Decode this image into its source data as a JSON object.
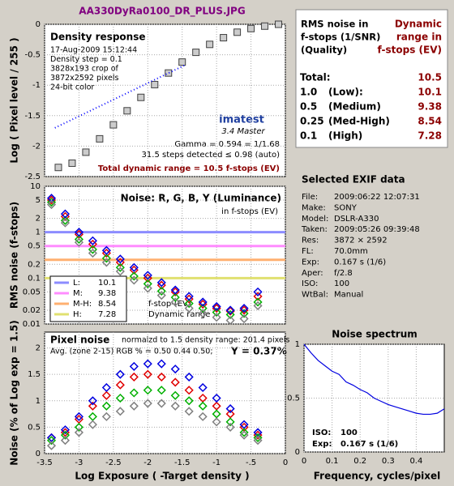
{
  "title": "AA330DyRa0100_DR_PLUS.JPG",
  "chart_data": [
    {
      "type": "scatter",
      "title": "Density response",
      "y_label": "Log ( Pixel level / 255 )",
      "notes": [
        "17-Aug-2009 15:12:44",
        "Density step = 0.1",
        "3828x193 crop of",
        "3872x2592 pixels",
        "24-bit color"
      ],
      "logo": "imatest",
      "version": "3.4  Master",
      "gamma": "Gamma = 0.594 = 1/1.68",
      "steps": "31.5 steps detected ≤ 0.98 (auto)",
      "dynamic_range": "Total dynamic range = 10.5 f-stops (EV)",
      "xlim": [
        -3.5,
        0
      ],
      "ylim": [
        -2.5,
        0
      ],
      "yticks": [
        0,
        -0.5,
        -1,
        -1.5,
        -2,
        -2.5
      ],
      "grid": true,
      "series": [
        {
          "style": "squares",
          "color": "#404040",
          "x": [
            -3.3,
            -3.1,
            -2.9,
            -2.7,
            -2.5,
            -2.3,
            -2.1,
            -1.9,
            -1.7,
            -1.5,
            -1.3,
            -1.1,
            -0.9,
            -0.7,
            -0.5,
            -0.3,
            -0.1
          ],
          "values": [
            -2.35,
            -2.28,
            -2.1,
            -1.88,
            -1.65,
            -1.42,
            -1.2,
            -0.99,
            -0.8,
            -0.62,
            -0.46,
            -0.33,
            -0.22,
            -0.13,
            -0.07,
            -0.03,
            0
          ]
        },
        {
          "style": "dotted",
          "color": "#0000ff",
          "x": [
            -3.35,
            -1.44
          ],
          "values": [
            -1.7,
            -0.66
          ]
        }
      ]
    },
    {
      "type": "scatter",
      "title": "Noise: R, G, B, Y (Luminance)",
      "subtitle": "in f-stops (EV)",
      "y_label": "RMS noise (f-stops)",
      "notes": [
        "f-stop-(EV)",
        "Dynamic range"
      ],
      "xlim": [
        -3.5,
        0
      ],
      "ylim": [
        0.01,
        10
      ],
      "log_y": true,
      "yticks": [
        10,
        5,
        2,
        1,
        0.5,
        0.2,
        0.1,
        0.05,
        0.02,
        0.01
      ],
      "grid": true,
      "thresholds": [
        {
          "label": "L:",
          "level": 1,
          "range": 10.1,
          "color": "#8c8cff"
        },
        {
          "label": "M:",
          "level": 0.5,
          "range": 9.38,
          "color": "#ff8cff"
        },
        {
          "label": "M-H:",
          "level": 0.25,
          "range": 8.54,
          "color": "#ffb070"
        },
        {
          "label": "H:",
          "level": 0.1,
          "range": 7.28,
          "color": "#e0e070"
        }
      ],
      "x": [
        -3.4,
        -3.2,
        -3.0,
        -2.8,
        -2.6,
        -2.4,
        -2.2,
        -2.0,
        -1.8,
        -1.6,
        -1.4,
        -1.2,
        -1.0,
        -0.8,
        -0.6,
        -0.4
      ],
      "series": [
        {
          "color": "#e00000",
          "values": [
            5,
            2.2,
            0.9,
            0.55,
            0.35,
            0.22,
            0.15,
            0.1,
            0.07,
            0.05,
            0.035,
            0.027,
            0.022,
            0.019,
            0.02,
            0.04
          ]
        },
        {
          "color": "#00b000",
          "values": [
            4.5,
            1.8,
            0.7,
            0.42,
            0.27,
            0.17,
            0.11,
            0.075,
            0.052,
            0.038,
            0.028,
            0.022,
            0.018,
            0.016,
            0.017,
            0.03
          ]
        },
        {
          "color": "#0000e0",
          "values": [
            5.5,
            2.5,
            1,
            0.65,
            0.4,
            0.26,
            0.17,
            0.115,
            0.08,
            0.055,
            0.04,
            0.03,
            0.024,
            0.02,
            0.022,
            0.05
          ]
        },
        {
          "color": "#808080",
          "values": [
            4,
            1.6,
            0.6,
            0.35,
            0.22,
            0.14,
            0.09,
            0.06,
            0.042,
            0.03,
            0.022,
            0.017,
            0.014,
            0.012,
            0.013,
            0.025
          ]
        }
      ]
    },
    {
      "type": "scatter",
      "title": "Pixel noise",
      "subtitle": "normalzd to 1.5 density range: 201.4 pixels",
      "average": "Avg. (zone 2-15) RGB % = 0.50  0.44  0.50;",
      "y_average": "Y = 0.37%",
      "x_label": "Log Exposure ( -Target density )",
      "y_label": "Noise (% of Log exp = 1.5)",
      "xlim": [
        -3.5,
        0
      ],
      "ylim": [
        0,
        2.3
      ],
      "yticks": [
        0,
        0.5,
        1,
        1.5,
        2
      ],
      "grid": true,
      "xticks": [
        -3.5,
        -3,
        -2.5,
        -2,
        -1.5,
        -1,
        {
          "value": -0.5,
          "label": "-.5"
        },
        0
      ],
      "x": [
        -3.4,
        -3.2,
        -3.0,
        -2.8,
        -2.6,
        -2.4,
        -2.2,
        -2.0,
        -1.8,
        -1.6,
        -1.4,
        -1.2,
        -1.0,
        -0.8,
        -0.6,
        -0.4
      ],
      "series": [
        {
          "color": "#e00000",
          "values": [
            0.3,
            0.4,
            0.65,
            0.9,
            1.1,
            1.3,
            1.45,
            1.5,
            1.45,
            1.35,
            1.2,
            1.05,
            0.9,
            0.75,
            0.5,
            0.35
          ]
        },
        {
          "color": "#0000e0",
          "values": [
            0.3,
            0.45,
            0.7,
            1.0,
            1.25,
            1.5,
            1.65,
            1.7,
            1.7,
            1.6,
            1.45,
            1.25,
            1.05,
            0.85,
            0.55,
            0.4
          ]
        },
        {
          "color": "#00b000",
          "values": [
            0.25,
            0.35,
            0.5,
            0.7,
            0.9,
            1.05,
            1.15,
            1.2,
            1.2,
            1.1,
            1.0,
            0.9,
            0.75,
            0.6,
            0.4,
            0.3
          ]
        },
        {
          "color": "#808080",
          "values": [
            0.15,
            0.25,
            0.4,
            0.55,
            0.7,
            0.8,
            0.9,
            0.95,
            0.95,
            0.9,
            0.8,
            0.7,
            0.6,
            0.5,
            0.35,
            0.25
          ]
        }
      ]
    },
    {
      "type": "line",
      "title": "Noise spectrum",
      "x_label": "Frequency, cycles/pixel",
      "color": "#0000e0",
      "iso": {
        "label": "ISO:",
        "value": "100"
      },
      "exposure": {
        "label": "Exp:",
        "value": "0.167 s  (1/6)"
      },
      "xlim": [
        0,
        0.5
      ],
      "ylim": [
        0,
        1
      ],
      "xticks": [
        0,
        0.1,
        0.2,
        0.3,
        0.4
      ],
      "yticks": [
        0,
        0.5,
        1
      ],
      "grid": true,
      "x": [
        0,
        0.025,
        0.05,
        0.075,
        0.1,
        0.125,
        0.15,
        0.175,
        0.2,
        0.225,
        0.25,
        0.275,
        0.3,
        0.325,
        0.35,
        0.375,
        0.4,
        0.425,
        0.45,
        0.475,
        0.5
      ],
      "values": [
        1,
        0.92,
        0.85,
        0.8,
        0.75,
        0.72,
        0.65,
        0.62,
        0.58,
        0.55,
        0.5,
        0.47,
        0.44,
        0.42,
        0.4,
        0.38,
        0.36,
        0.35,
        0.35,
        0.36,
        0.4
      ]
    }
  ],
  "summary": {
    "left_header": [
      "RMS noise in",
      "f-stops (1/SNR)",
      "(Quality)"
    ],
    "right_header": [
      "Dynamic",
      "range in",
      "f-stops (EV)"
    ],
    "rows": [
      {
        "label": "Total:",
        "value": 10.5
      },
      {
        "label": "1.0",
        "desc": "(Low):",
        "value": 10.1
      },
      {
        "label": "0.5",
        "desc": "(Medium)",
        "value": 9.38
      },
      {
        "label": "0.25",
        "desc": "(Med-High)",
        "value": 8.54
      },
      {
        "label": "0.1",
        "desc": "(High)",
        "value": 7.28
      }
    ]
  },
  "exif": {
    "title": "Selected EXIF data",
    "rows": [
      {
        "key": "File:",
        "value": "2009:06:22 12:07:31"
      },
      {
        "key": "Make:",
        "value": "SONY"
      },
      {
        "key": "Model:",
        "value": "DSLR-A330"
      },
      {
        "key": "Taken:",
        "value": "2009:05:26 09:39:48"
      },
      {
        "key": "Res:",
        "value": "3872 × 2592"
      },
      {
        "key": "FL:",
        "value": "70.0mm"
      },
      {
        "key": "Exp:",
        "value": "0.167 s  (1/6)"
      },
      {
        "key": "Aper:",
        "value": "f/2.8"
      },
      {
        "key": "ISO:",
        "value": "100"
      },
      {
        "key": "WtBal:",
        "value": "Manual"
      }
    ]
  }
}
